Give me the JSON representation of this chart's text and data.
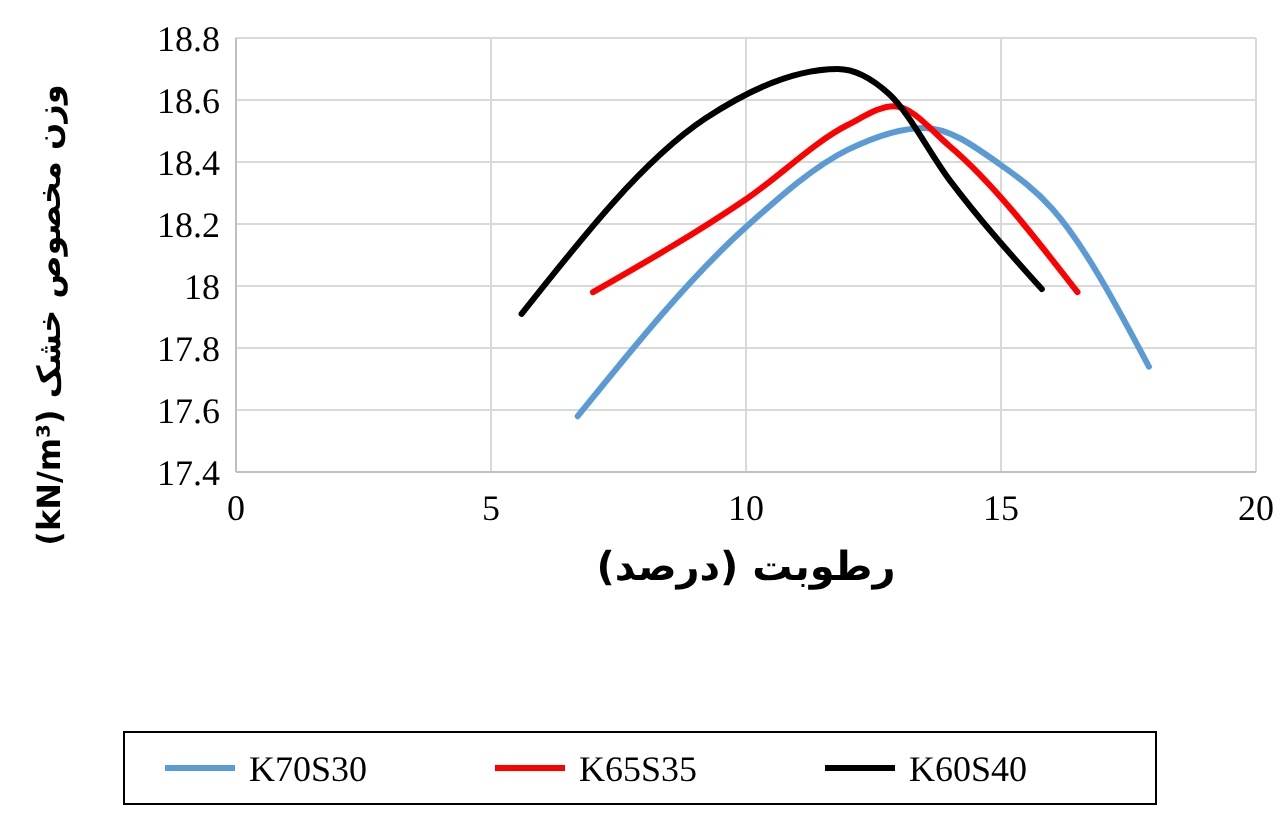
{
  "chart_data": {
    "type": "line",
    "xlabel": "رطوبت (درصد)",
    "ylabel": "وزن مخصوص خشک (kN/m³)",
    "xlim": [
      0,
      20
    ],
    "xticks": [
      0,
      5,
      10,
      15,
      20
    ],
    "ylim": [
      17.4,
      18.8
    ],
    "yticks": [
      17.4,
      17.6,
      {
        "value": 17.8,
        "label": "17.8"
      },
      {
        "value": 18,
        "label": "18"
      },
      18.2,
      18.4,
      18.6,
      18.8
    ],
    "grid": true,
    "legend": "bottom",
    "marker": "none",
    "line_style": "solid",
    "series": [
      {
        "name": "K70S30",
        "color": "#5b9bd5",
        "x": [
          6.7,
          10,
          12,
          13.5,
          15,
          16,
          17.9
        ],
        "values": [
          17.58,
          18.19,
          18.44,
          18.51,
          18.39,
          18.25,
          17.74
        ]
      },
      {
        "name": "K65S35",
        "color": "#ff0000",
        "x": [
          7,
          10,
          12,
          12.9,
          14,
          16.5
        ],
        "values": [
          17.98,
          18.28,
          18.52,
          18.58,
          18.45,
          17.98
        ]
      },
      {
        "name": "K60S40",
        "color": "#000000",
        "x": [
          5.6,
          9.2,
          11.8,
          12.8,
          14,
          15.8
        ],
        "values": [
          17.91,
          18.54,
          18.7,
          18.62,
          18.34,
          17.99
        ]
      }
    ]
  }
}
